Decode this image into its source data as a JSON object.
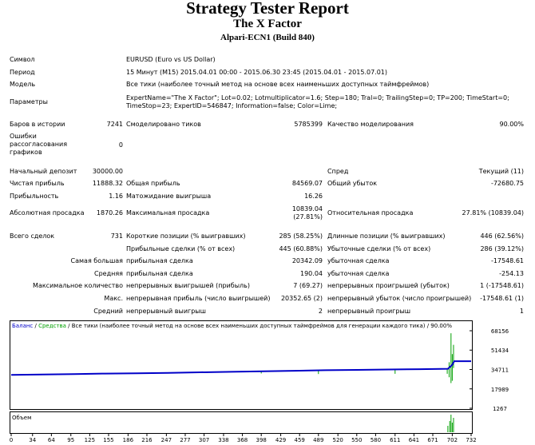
{
  "header": {
    "title": "Strategy Tester Report",
    "expert": "The X Factor",
    "server": "Alpari-ECN1 (Build 840)"
  },
  "info": {
    "symbol_label": "Символ",
    "symbol_value": "EURUSD (Euro vs US Dollar)",
    "period_label": "Период",
    "period_value": "15 Минут (M15) 2015.04.01 00:00 - 2015.06.30 23:45 (2015.04.01 - 2015.07.01)",
    "model_label": "Модель",
    "model_value": "Все тики (наиболее точный метод на основе всех наименьших доступных таймфреймов)",
    "params_label": "Параметры",
    "params_value": "ExpertName=\"The X Factor\"; Lot=0.02; Lotmultiplicator=1.6; Step=180; Tral=0; TrailingStep=0; TP=200; TimeStart=0; TimeStop=23; ExpertID=546847; Information=false; Color=Lime;"
  },
  "bars": {
    "bars_label": "Баров в истории",
    "bars_value": "7241",
    "ticks_label": "Смоделировано тиков",
    "ticks_value": "5785399",
    "quality_label": "Качество моделирования",
    "quality_value": "90.00%",
    "errors_label": "Ошибки рассогласования графиков",
    "errors_value": "0"
  },
  "results": {
    "deposit_label": "Начальный депозит",
    "deposit_value": "30000.00",
    "spread_label": "Спред",
    "spread_value": "Текущий (11)",
    "net_label": "Чистая прибыль",
    "net_value": "11888.32",
    "gross_profit_label": "Общая прибыль",
    "gross_profit_value": "84569.07",
    "gross_loss_label": "Общий убыток",
    "gross_loss_value": "-72680.75",
    "pf_label": "Прибыльность",
    "pf_value": "1.16",
    "ep_label": "Матожидание выигрыша",
    "ep_value": "16.26",
    "abs_dd_label": "Абсолютная просадка",
    "abs_dd_value": "1870.26",
    "max_dd_label": "Максимальная просадка",
    "max_dd_value": "10839.04",
    "max_dd_pct": "(27.81%)",
    "rel_dd_label": "Относительная просадка",
    "rel_dd_value": "27.81% (10839.04)"
  },
  "trades": {
    "total_label": "Всего сделок",
    "total_value": "731",
    "short_label": "Короткие позиции (% выигравших)",
    "short_value": "285 (58.25%)",
    "long_label": "Длинные позиции (% выигравших)",
    "long_value": "446 (62.56%)",
    "win_label": "Прибыльные сделки (% от всех)",
    "win_value": "445 (60.88%)",
    "loss_label": "Убыточные сделки (% от всех)",
    "loss_value": "286 (39.12%)",
    "largest_label": "Самая большая",
    "largest_win_label": "прибыльная сделка",
    "largest_win_value": "20342.09",
    "largest_loss_label": "убыточная сделка",
    "largest_loss_value": "-17548.61",
    "average_label": "Средняя",
    "average_win_label": "прибыльная сделка",
    "average_win_value": "190.04",
    "average_loss_label": "убыточная сделка",
    "average_loss_value": "-254.13",
    "maxcount_label": "Максимальное количество",
    "maxcount_win_label": "непрерывных выигрышей (прибыль)",
    "maxcount_win_value": "7 (69.27)",
    "maxcount_loss_label": "непрерывных проигрышей (убыток)",
    "maxcount_loss_value": "1 (-17548.61)",
    "maxsum_label": "Макс.",
    "maxsum_win_label": "непрерывная прибыль (число выигрышей)",
    "maxsum_win_value": "20352.65 (2)",
    "maxsum_loss_label": "непрерывный убыток (число проигрышей)",
    "maxsum_loss_value": "-17548.61 (1)",
    "avgcons_label": "Средний",
    "avgcons_win_label": "непрерывный выигрыш",
    "avgcons_win_value": "2",
    "avgcons_loss_label": "непрерывный проигрыш",
    "avgcons_loss_value": "1"
  },
  "chart_data": {
    "type": "line",
    "legend_balance": "Баланс",
    "legend_sep": " / ",
    "legend_equity": "Средства",
    "legend_rest": " / Все тики (наиболее точный метод на основе всех наименьших доступных таймфреймов для генерации каждого тика) / 90.00%",
    "volume_label": "Объем",
    "y_ticks": [
      "68156",
      "51434",
      "34711",
      "17989",
      "1267"
    ],
    "y_values": [
      68156,
      51434,
      34711,
      17989,
      1267
    ],
    "x_ticks": [
      "0",
      "34",
      "64",
      "95",
      "125",
      "155",
      "186",
      "216",
      "247",
      "277",
      "307",
      "338",
      "368",
      "398",
      "429",
      "459",
      "489",
      "520",
      "550",
      "580",
      "611",
      "641",
      "671",
      "702",
      "732"
    ],
    "ylim": [
      1267,
      68156
    ],
    "xlim": [
      0,
      732
    ],
    "colors": {
      "balance": "#0000c8",
      "equity": "#00a000"
    },
    "series": [
      {
        "name": "Баланс",
        "x": [
          0,
          50,
          100,
          150,
          200,
          250,
          300,
          350,
          400,
          450,
          500,
          550,
          600,
          650,
          695,
          702,
          705,
          732
        ],
        "values": [
          30000,
          30400,
          30800,
          31200,
          31400,
          31800,
          32300,
          32700,
          33200,
          33600,
          34100,
          34400,
          34700,
          35000,
          35300,
          38800,
          41900,
          41900
        ]
      }
    ],
    "equity_spikes": [
      {
        "x": 398,
        "values": [
          33000,
          31300
        ]
      },
      {
        "x": 489,
        "values": [
          33900,
          30800
        ]
      },
      {
        "x": 611,
        "values": [
          34600,
          31000
        ]
      },
      {
        "x": 694,
        "values": [
          35000,
          31000
        ]
      },
      {
        "x": 697,
        "values": [
          41000,
          28000
        ]
      },
      {
        "x": 700,
        "values": [
          66000,
          23000
        ]
      },
      {
        "x": 702,
        "values": [
          48000,
          25000
        ]
      },
      {
        "x": 704,
        "values": [
          56000,
          36000
        ]
      }
    ]
  }
}
